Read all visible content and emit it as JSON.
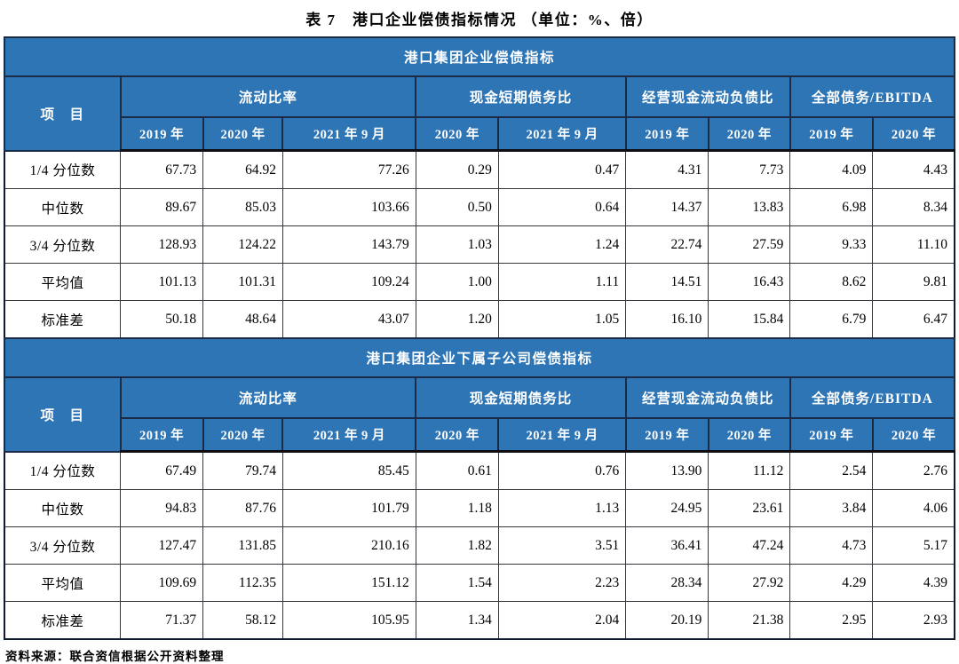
{
  "title": "表 7　港口企业偿债指标情况 （单位：%、倍）",
  "source_note": "资料来源：联合资信根据公开资料整理",
  "colors": {
    "header_blue": "#2E75B6",
    "header_text": "#FFFFFF",
    "header_border": "#1B2A45",
    "body_border": "#36373C"
  },
  "tables": [
    {
      "section_title": "港口集团企业偿债指标",
      "item_label": "项　目",
      "groups": [
        {
          "label": "流动比率",
          "years": [
            "2019 年",
            "2020 年",
            "2021 年 9 月"
          ]
        },
        {
          "label": "现金短期债务比",
          "years": [
            "2020 年",
            "2021 年 9 月"
          ]
        },
        {
          "label": "经营现金流动负债比",
          "years": [
            "2019 年",
            "2020 年"
          ]
        },
        {
          "label": "全部债务/EBITDA",
          "years": [
            "2019 年",
            "2020 年"
          ]
        }
      ],
      "rows": [
        {
          "label": "1/4 分位数",
          "values": [
            "67.73",
            "64.92",
            "77.26",
            "0.29",
            "0.47",
            "4.31",
            "7.73",
            "4.09",
            "4.43"
          ]
        },
        {
          "label": "中位数",
          "values": [
            "89.67",
            "85.03",
            "103.66",
            "0.50",
            "0.64",
            "14.37",
            "13.83",
            "6.98",
            "8.34"
          ]
        },
        {
          "label": "3/4 分位数",
          "values": [
            "128.93",
            "124.22",
            "143.79",
            "1.03",
            "1.24",
            "22.74",
            "27.59",
            "9.33",
            "11.10"
          ]
        },
        {
          "label": "平均值",
          "values": [
            "101.13",
            "101.31",
            "109.24",
            "1.00",
            "1.11",
            "14.51",
            "16.43",
            "8.62",
            "9.81"
          ]
        },
        {
          "label": "标准差",
          "values": [
            "50.18",
            "48.64",
            "43.07",
            "1.20",
            "1.05",
            "16.10",
            "15.84",
            "6.79",
            "6.47"
          ]
        }
      ]
    },
    {
      "section_title": "港口集团企业下属子公司偿债指标",
      "item_label": "项　目",
      "groups": [
        {
          "label": "流动比率",
          "years": [
            "2019 年",
            "2020 年",
            "2021 年 9 月"
          ]
        },
        {
          "label": "现金短期债务比",
          "years": [
            "2020 年",
            "2021 年 9 月"
          ]
        },
        {
          "label": "经营现金流动负债比",
          "years": [
            "2019 年",
            "2020 年"
          ]
        },
        {
          "label": "全部债务/EBITDA",
          "years": [
            "2019 年",
            "2020 年"
          ]
        }
      ],
      "rows": [
        {
          "label": "1/4 分位数",
          "values": [
            "67.49",
            "79.74",
            "85.45",
            "0.61",
            "0.76",
            "13.90",
            "11.12",
            "2.54",
            "2.76"
          ]
        },
        {
          "label": "中位数",
          "values": [
            "94.83",
            "87.76",
            "101.79",
            "1.18",
            "1.13",
            "24.95",
            "23.61",
            "3.84",
            "4.06"
          ]
        },
        {
          "label": "3/4 分位数",
          "values": [
            "127.47",
            "131.85",
            "210.16",
            "1.82",
            "3.51",
            "36.41",
            "47.24",
            "4.73",
            "5.17"
          ]
        },
        {
          "label": "平均值",
          "values": [
            "109.69",
            "112.35",
            "151.12",
            "1.54",
            "2.23",
            "28.34",
            "27.92",
            "4.29",
            "4.39"
          ]
        },
        {
          "label": "标准差",
          "values": [
            "71.37",
            "58.12",
            "105.95",
            "1.34",
            "2.04",
            "20.19",
            "21.38",
            "2.95",
            "2.93"
          ]
        }
      ]
    }
  ]
}
